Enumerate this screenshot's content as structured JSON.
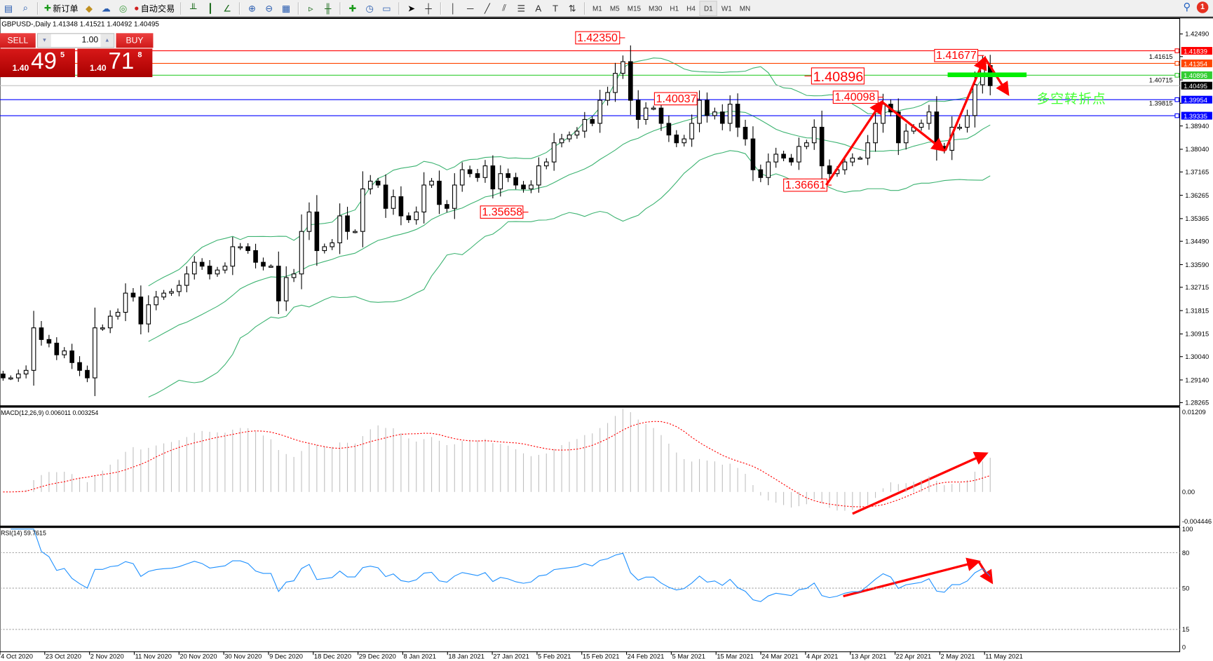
{
  "toolbar": {
    "new_order": "新订单",
    "auto_trading": "自动交易",
    "timeframes": [
      "M1",
      "M5",
      "M15",
      "M30",
      "H1",
      "H4",
      "D1",
      "W1",
      "MN"
    ],
    "active_timeframe": "D1",
    "notification_count": "1"
  },
  "chart": {
    "symbol_line": "GBPUSD-,Daily  1.41348 1.41521 1.40492 1.40495",
    "note": "多空转折点"
  },
  "trade_panel": {
    "sell": "SELL",
    "buy": "BUY",
    "lots": "1.00",
    "sell_prefix": "1.40",
    "sell_big": "49",
    "sell_sup": "5",
    "buy_prefix": "1.40",
    "buy_big": "71",
    "buy_sup": "8"
  },
  "colors": {
    "candle_bear": "#000000",
    "candle_bull": "#ffffff",
    "bollinger": "#3cb371",
    "macd_hist": "#c0c0c0",
    "macd_signal": "#ff0000",
    "rsi": "#1e90ff",
    "annotation": "#ff0000",
    "note": "#44ff33"
  },
  "chart_data": [
    {
      "type": "candlestick",
      "ylim": [
        1.28265,
        1.4249
      ],
      "closes": [
        1.2922,
        1.2922,
        1.2937,
        1.2951,
        1.3115,
        1.307,
        1.3056,
        1.3011,
        1.3026,
        1.2981,
        1.2951,
        1.2922,
        1.3115,
        1.3115,
        1.316,
        1.3175,
        1.3249,
        1.3234,
        1.313,
        1.3204,
        1.3234,
        1.3249,
        1.3255,
        1.3279,
        1.3323,
        1.3368,
        1.3353,
        1.3323,
        1.3338,
        1.3353,
        1.3428,
        1.3428,
        1.3413,
        1.3368,
        1.3353,
        1.3353,
        1.3219,
        1.3309,
        1.3323,
        1.3487,
        1.3562,
        1.3413,
        1.3428,
        1.3443,
        1.3547,
        1.3487,
        1.3487,
        1.3651,
        1.3681,
        1.3666,
        1.3576,
        1.3621,
        1.3547,
        1.3532,
        1.3562,
        1.3666,
        1.3681,
        1.3591,
        1.3576,
        1.3666,
        1.3725,
        1.371,
        1.3695,
        1.374,
        1.3651,
        1.371,
        1.3695,
        1.3666,
        1.3651,
        1.3666,
        1.374,
        1.3755,
        1.3829,
        1.3844,
        1.3859,
        1.3874,
        1.3919,
        1.3904,
        1.3993,
        1.4023,
        1.4097,
        1.4142,
        1.3993,
        1.3919,
        1.3963,
        1.3963,
        1.3904,
        1.3859,
        1.3829,
        1.3844,
        1.3904,
        1.3993,
        1.3934,
        1.3948,
        1.3904,
        1.3978,
        1.3889,
        1.3844,
        1.3725,
        1.3695,
        1.3755,
        1.3785,
        1.377,
        1.3755,
        1.3815,
        1.3829,
        1.3889,
        1.374,
        1.371,
        1.3725,
        1.3755,
        1.377,
        1.377,
        1.3829,
        1.3904,
        1.3978,
        1.3948,
        1.3829,
        1.3874,
        1.3889,
        1.3904,
        1.3948,
        1.3815,
        1.38,
        1.3889,
        1.3889,
        1.3934,
        1.4053,
        1.4127,
        1.40495
      ],
      "price_ticks": [
        "1.42490",
        "1.41615",
        "1.40715",
        "1.39815",
        "1.38940",
        "1.38040",
        "1.37165",
        "1.36265",
        "1.35365",
        "1.34490",
        "1.33590",
        "1.32715",
        "1.31815",
        "1.30915",
        "1.30040",
        "1.29140",
        "1.28265"
      ],
      "horizontal_lines": [
        {
          "price": 1.41839,
          "label": "1.41839",
          "color": "#ff0000"
        },
        {
          "price": 1.41354,
          "label": "1.41354",
          "color": "#ff4500"
        },
        {
          "price": 1.40896,
          "label": "1.40896",
          "color": "#32cd32"
        },
        {
          "price": 1.40495,
          "label": "1.40495",
          "color": "#000000",
          "line_color": "#c0c0c0"
        },
        {
          "price": 1.39954,
          "label": "1.39954",
          "color": "#0000ff"
        },
        {
          "price": 1.39335,
          "label": "1.39335",
          "color": "#0000ff"
        }
      ],
      "annotations": [
        "1.42350",
        "1.40037",
        "1.35658",
        "1.36661",
        "1.40098",
        "1.41677",
        "1.40896"
      ],
      "dates": [
        "4 Oct 2020",
        "23 Oct 2020",
        "2 Nov 2020",
        "11 Nov 2020",
        "20 Nov 2020",
        "30 Nov 2020",
        "9 Dec 2020",
        "18 Dec 2020",
        "29 Dec 2020",
        "8 Jan 2021",
        "18 Jan 2021",
        "27 Jan 2021",
        "5 Feb 2021",
        "15 Feb 2021",
        "24 Feb 2021",
        "5 Mar 2021",
        "15 Mar 2021",
        "24 Mar 2021",
        "4 Apr 2021",
        "13 Apr 2021",
        "22 Apr 2021",
        "2 May 2021",
        "11 May 2021"
      ]
    },
    {
      "type": "bar",
      "title": "MACD(12,26,9) 0.006011 0.003254",
      "ylim": [
        -0.004446,
        0.01209
      ],
      "ticks": [
        "0.01209",
        "0.00",
        "-0.004446"
      ]
    },
    {
      "type": "line",
      "title": "RSI(14) 59.7615",
      "ylim": [
        0,
        100
      ],
      "ticks": [
        "100",
        "80",
        "50",
        "15",
        "0"
      ],
      "levels": [
        80,
        50,
        15
      ]
    }
  ]
}
